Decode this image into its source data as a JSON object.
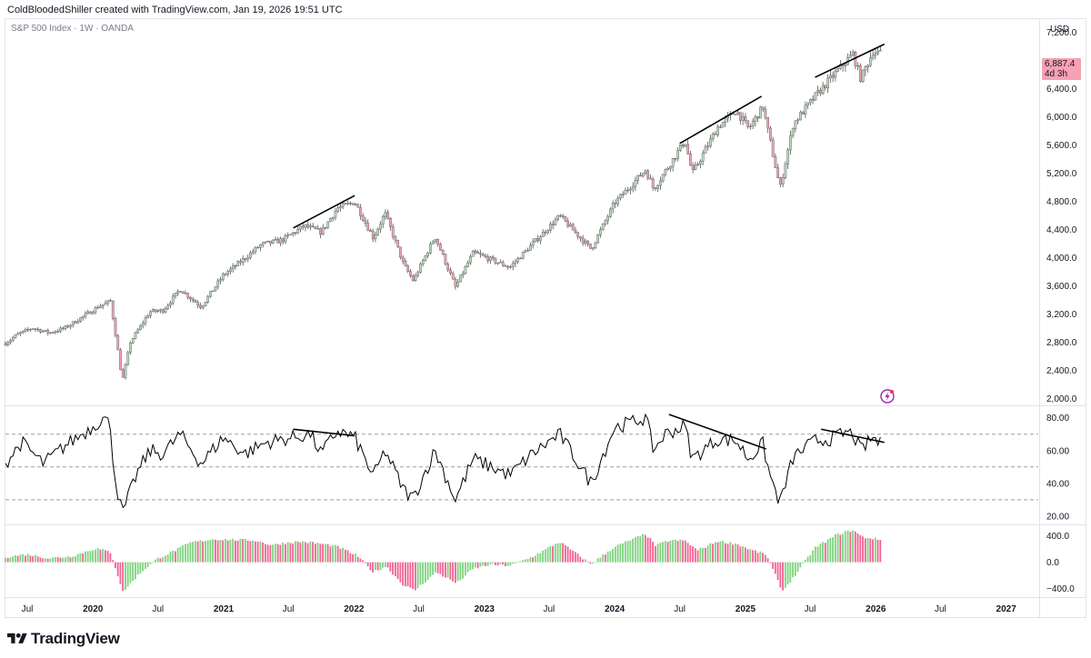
{
  "header": {
    "attribution": "ColdBloodedShiller created with TradingView.com, Jan 19, 2026 19:51 UTC",
    "symbol": "S&P 500 Index · 1W · OANDA"
  },
  "price_axis": {
    "currency": "USD",
    "last_price": "6,887.4",
    "countdown": "4d 3h",
    "tag_color": "#f7a1b4"
  },
  "footer": {
    "brand": "TradingView",
    "logo_icon": "tradingview-logo-icon"
  },
  "colors": {
    "up": "#26a69a",
    "down": "#ef5350",
    "candle_body_up": "#9e9e9e",
    "candle_body_down": "#8d8d8d",
    "hist_pos": "#7ed37e",
    "hist_neg": "#f06292",
    "rsi_line": "#000000",
    "grid_dash": "#9e9e9e"
  },
  "chart_data": [
    {
      "type": "candlestick",
      "name": "S&P 500 Index · 1W · OANDA",
      "ylim": [
        1900,
        7400
      ],
      "y_ticks": [
        "2,000.0",
        "2,400.0",
        "2,800.0",
        "3,200.0",
        "3,600.0",
        "4,000.0",
        "4,400.0",
        "4,800.0",
        "5,200.0",
        "5,600.0",
        "6,000.0",
        "6,400.0",
        "7,200.0"
      ],
      "y_tick_values": [
        2000,
        2400,
        2800,
        3200,
        3600,
        4000,
        4400,
        4800,
        5200,
        5600,
        6000,
        6400,
        7200
      ],
      "x_range": [
        "2019-05-01",
        "2027-04-01"
      ],
      "close_path": [
        [
          "2019-05-01",
          2780
        ],
        [
          "2019-06-01",
          2900
        ],
        [
          "2019-07-15",
          3000
        ],
        [
          "2019-09-01",
          2930
        ],
        [
          "2019-10-15",
          3000
        ],
        [
          "2019-12-01",
          3150
        ],
        [
          "2020-01-15",
          3300
        ],
        [
          "2020-02-19",
          3380
        ],
        [
          "2020-03-09",
          2750
        ],
        [
          "2020-03-23",
          2240
        ],
        [
          "2020-04-15",
          2800
        ],
        [
          "2020-06-08",
          3230
        ],
        [
          "2020-07-15",
          3250
        ],
        [
          "2020-09-01",
          3550
        ],
        [
          "2020-10-30",
          3300
        ],
        [
          "2020-12-31",
          3750
        ],
        [
          "2021-02-15",
          3930
        ],
        [
          "2021-04-15",
          4180
        ],
        [
          "2021-06-15",
          4250
        ],
        [
          "2021-08-15",
          4450
        ],
        [
          "2021-10-01",
          4360
        ],
        [
          "2021-11-15",
          4700
        ],
        [
          "2022-01-03",
          4790
        ],
        [
          "2022-02-24",
          4280
        ],
        [
          "2022-03-29",
          4630
        ],
        [
          "2022-05-20",
          3900
        ],
        [
          "2022-06-16",
          3670
        ],
        [
          "2022-08-16",
          4300
        ],
        [
          "2022-10-12",
          3580
        ],
        [
          "2022-12-01",
          4070
        ],
        [
          "2023-01-15",
          3980
        ],
        [
          "2023-03-13",
          3860
        ],
        [
          "2023-05-15",
          4190
        ],
        [
          "2023-07-31",
          4590
        ],
        [
          "2023-10-27",
          4120
        ],
        [
          "2023-12-31",
          4770
        ],
        [
          "2024-03-28",
          5250
        ],
        [
          "2024-04-19",
          4970
        ],
        [
          "2024-07-16",
          5660
        ],
        [
          "2024-08-05",
          5190
        ],
        [
          "2024-10-15",
          5850
        ],
        [
          "2024-12-06",
          6090
        ],
        [
          "2025-01-10",
          5830
        ],
        [
          "2025-02-19",
          6140
        ],
        [
          "2025-04-08",
          4980
        ],
        [
          "2025-05-15",
          5900
        ],
        [
          "2025-07-15",
          6290
        ],
        [
          "2025-09-15",
          6650
        ],
        [
          "2025-10-29",
          6890
        ],
        [
          "2025-11-20",
          6540
        ],
        [
          "2025-12-24",
          6930
        ],
        [
          "2026-01-19",
          6887
        ]
      ],
      "trendlines": [
        {
          "from": [
            "2021-07-15",
            4420
          ],
          "to": [
            "2022-01-03",
            4880
          ]
        },
        {
          "from": [
            "2024-07-01",
            5620
          ],
          "to": [
            "2025-02-15",
            6290
          ]
        },
        {
          "from": [
            "2025-07-15",
            6560
          ],
          "to": [
            "2026-01-25",
            7030
          ]
        }
      ]
    },
    {
      "type": "line",
      "name": "RSI",
      "ylim": [
        15,
        87
      ],
      "y_ticks": [
        "20.00",
        "40.00",
        "60.00",
        "80.00"
      ],
      "y_tick_values": [
        20,
        40,
        60,
        80
      ],
      "reference_levels": [
        30,
        50,
        70
      ],
      "path": [
        [
          "2019-05-01",
          52
        ],
        [
          "2019-06-15",
          65
        ],
        [
          "2019-08-15",
          52
        ],
        [
          "2019-10-15",
          63
        ],
        [
          "2019-12-15",
          72
        ],
        [
          "2020-01-31",
          80
        ],
        [
          "2020-02-19",
          75
        ],
        [
          "2020-03-01",
          45
        ],
        [
          "2020-03-23",
          21
        ],
        [
          "2020-05-01",
          45
        ],
        [
          "2020-06-08",
          60
        ],
        [
          "2020-07-15",
          58
        ],
        [
          "2020-09-01",
          70
        ],
        [
          "2020-10-30",
          52
        ],
        [
          "2020-12-31",
          68
        ],
        [
          "2021-03-01",
          58
        ],
        [
          "2021-05-01",
          65
        ],
        [
          "2021-07-15",
          68
        ],
        [
          "2021-09-01",
          70
        ],
        [
          "2021-10-01",
          58
        ],
        [
          "2021-11-15",
          72
        ],
        [
          "2022-01-03",
          68
        ],
        [
          "2022-02-24",
          44
        ],
        [
          "2022-03-29",
          60
        ],
        [
          "2022-05-20",
          36
        ],
        [
          "2022-06-16",
          31
        ],
        [
          "2022-08-16",
          60
        ],
        [
          "2022-10-12",
          30
        ],
        [
          "2022-12-01",
          55
        ],
        [
          "2023-03-13",
          45
        ],
        [
          "2023-05-15",
          58
        ],
        [
          "2023-07-31",
          70
        ],
        [
          "2023-10-27",
          40
        ],
        [
          "2023-12-31",
          74
        ],
        [
          "2024-03-28",
          80
        ],
        [
          "2024-04-19",
          60
        ],
        [
          "2024-05-20",
          70
        ],
        [
          "2024-07-16",
          75
        ],
        [
          "2024-08-05",
          55
        ],
        [
          "2024-10-15",
          67
        ],
        [
          "2024-12-06",
          66
        ],
        [
          "2025-01-10",
          55
        ],
        [
          "2025-02-19",
          64
        ],
        [
          "2025-03-10",
          45
        ],
        [
          "2025-04-08",
          28
        ],
        [
          "2025-05-15",
          56
        ],
        [
          "2025-07-15",
          66
        ],
        [
          "2025-08-25",
          67
        ],
        [
          "2025-10-10",
          71
        ],
        [
          "2025-10-29",
          70
        ],
        [
          "2025-11-20",
          60
        ],
        [
          "2025-12-24",
          68
        ],
        [
          "2026-01-19",
          63
        ]
      ],
      "trendlines": [
        {
          "from": [
            "2021-07-15",
            73
          ],
          "to": [
            "2022-01-03",
            69
          ]
        },
        {
          "from": [
            "2024-06-01",
            82
          ],
          "to": [
            "2025-02-28",
            61
          ]
        },
        {
          "from": [
            "2025-08-01",
            73
          ],
          "to": [
            "2026-01-25",
            65
          ]
        }
      ]
    },
    {
      "type": "histogram",
      "name": "Oscillator",
      "ylim": [
        -530,
        560
      ],
      "y_ticks": [
        "400.0",
        "0.0",
        "−400.0"
      ],
      "y_tick_values": [
        400,
        0,
        -400
      ],
      "path": [
        [
          "2019-05-01",
          80
        ],
        [
          "2019-07-01",
          120
        ],
        [
          "2019-09-01",
          60
        ],
        [
          "2019-11-01",
          90
        ],
        [
          "2020-01-10",
          210
        ],
        [
          "2020-02-20",
          150
        ],
        [
          "2020-03-25",
          -450
        ],
        [
          "2020-05-15",
          -150
        ],
        [
          "2020-07-01",
          60
        ],
        [
          "2020-08-15",
          170
        ],
        [
          "2020-10-01",
          300
        ],
        [
          "2020-12-01",
          350
        ],
        [
          "2021-02-01",
          340
        ],
        [
          "2021-04-01",
          330
        ],
        [
          "2021-05-15",
          260
        ],
        [
          "2021-07-01",
          300
        ],
        [
          "2021-08-15",
          310
        ],
        [
          "2021-10-01",
          280
        ],
        [
          "2021-11-15",
          240
        ],
        [
          "2022-01-10",
          100
        ],
        [
          "2022-02-24",
          -150
        ],
        [
          "2022-04-01",
          -60
        ],
        [
          "2022-05-20",
          -350
        ],
        [
          "2022-06-20",
          -430
        ],
        [
          "2022-08-20",
          -150
        ],
        [
          "2022-10-15",
          -320
        ],
        [
          "2022-12-01",
          -100
        ],
        [
          "2023-01-15",
          -40
        ],
        [
          "2023-03-15",
          -50
        ],
        [
          "2023-05-15",
          80
        ],
        [
          "2023-07-31",
          310
        ],
        [
          "2023-10-27",
          -30
        ],
        [
          "2023-12-31",
          230
        ],
        [
          "2024-03-28",
          430
        ],
        [
          "2024-04-25",
          250
        ],
        [
          "2024-06-01",
          330
        ],
        [
          "2024-07-15",
          330
        ],
        [
          "2024-08-20",
          180
        ],
        [
          "2024-10-15",
          320
        ],
        [
          "2024-12-06",
          280
        ],
        [
          "2025-01-20",
          180
        ],
        [
          "2025-02-28",
          120
        ],
        [
          "2025-04-15",
          -440
        ],
        [
          "2025-05-20",
          -200
        ],
        [
          "2025-07-15",
          220
        ],
        [
          "2025-09-15",
          420
        ],
        [
          "2025-10-29",
          490
        ],
        [
          "2025-11-25",
          380
        ],
        [
          "2025-12-24",
          360
        ],
        [
          "2026-01-19",
          330
        ]
      ]
    }
  ],
  "time_axis": {
    "labels": [
      {
        "text": "Jul",
        "date": "2019-07-01",
        "bold": false
      },
      {
        "text": "2020",
        "date": "2020-01-01",
        "bold": true
      },
      {
        "text": "Jul",
        "date": "2020-07-01",
        "bold": false
      },
      {
        "text": "2021",
        "date": "2021-01-01",
        "bold": true
      },
      {
        "text": "Jul",
        "date": "2021-07-01",
        "bold": false
      },
      {
        "text": "2022",
        "date": "2022-01-01",
        "bold": true
      },
      {
        "text": "Jul",
        "date": "2022-07-01",
        "bold": false
      },
      {
        "text": "2023",
        "date": "2023-01-01",
        "bold": true
      },
      {
        "text": "Jul",
        "date": "2023-07-01",
        "bold": false
      },
      {
        "text": "2024",
        "date": "2024-01-01",
        "bold": true
      },
      {
        "text": "Jul",
        "date": "2024-07-01",
        "bold": false
      },
      {
        "text": "2025",
        "date": "2025-01-01",
        "bold": true
      },
      {
        "text": "Jul",
        "date": "2025-07-01",
        "bold": false
      },
      {
        "text": "2026",
        "date": "2026-01-01",
        "bold": true
      },
      {
        "text": "Jul",
        "date": "2026-07-01",
        "bold": false
      },
      {
        "text": "2027",
        "date": "2027-01-01",
        "bold": true
      }
    ]
  }
}
